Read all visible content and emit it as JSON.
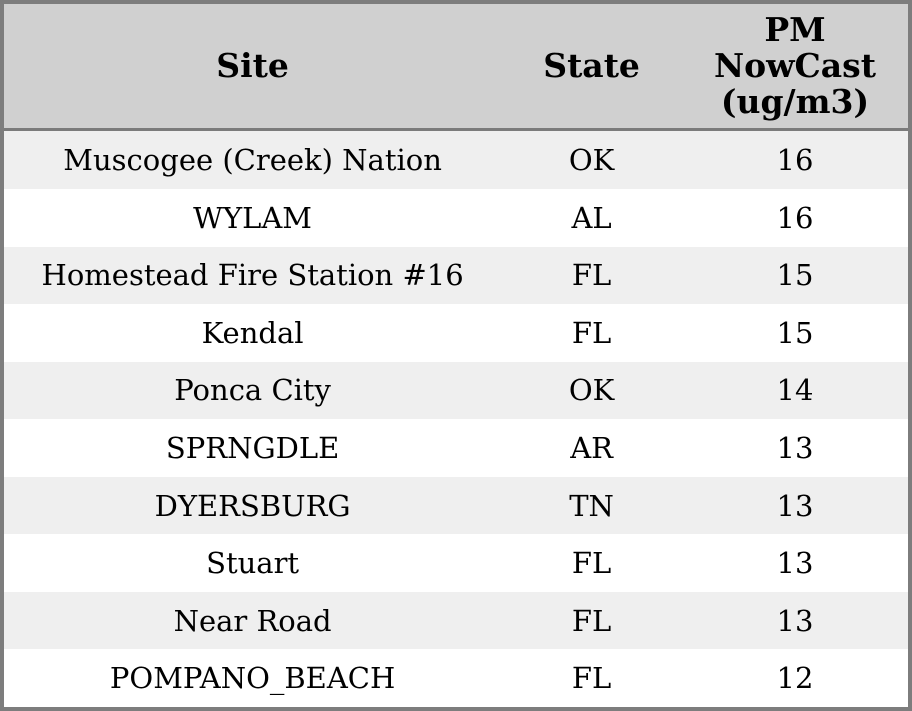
{
  "chart_data": {
    "type": "table",
    "columns": [
      "Site",
      "State",
      "PM NowCast (ug/m3)"
    ],
    "rows": [
      [
        "Muscogee (Creek) Nation",
        "OK",
        16
      ],
      [
        "WYLAM",
        "AL",
        16
      ],
      [
        "Homestead Fire Station #16",
        "FL",
        15
      ],
      [
        "Kendal",
        "FL",
        15
      ],
      [
        "Ponca City",
        "OK",
        14
      ],
      [
        "SPRNGDLE",
        "AR",
        13
      ],
      [
        "DYERSBURG",
        "TN",
        13
      ],
      [
        "Stuart",
        "FL",
        13
      ],
      [
        "Near Road",
        "FL",
        13
      ],
      [
        "POMPANO_BEACH",
        "FL",
        12
      ]
    ],
    "title": "",
    "layout_hints": {
      "header_position": "top",
      "row_striping": "odd-rows-shaded",
      "alignment": "center"
    }
  },
  "colors": {
    "outer_border": "#7d7d7d",
    "header_bg": "#d0d0d0",
    "header_separator": "#7b7b7b",
    "row_alt_bg": "#efefef",
    "row_bg": "#ffffff",
    "text": "#000000"
  }
}
